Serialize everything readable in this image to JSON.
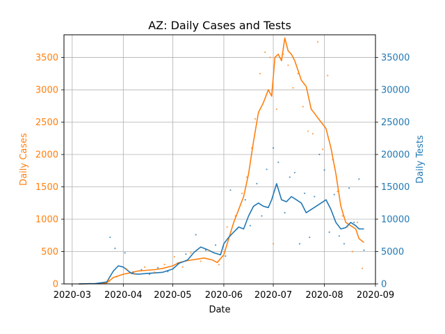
{
  "chart_data": {
    "type": "line",
    "title": "AZ: Daily Cases and Tests",
    "xlabel": "Date",
    "x_ticks": [
      "2020-03",
      "2020-04",
      "2020-05",
      "2020-06",
      "2020-07",
      "2020-08",
      "2020-09"
    ],
    "x_range": [
      "2020-02-25",
      "2020-09-01"
    ],
    "grid": true,
    "left_axis": {
      "label": "Daily Cases",
      "color": "#ff7f0e",
      "ylim": [
        0,
        3850
      ],
      "ticks": [
        0,
        500,
        1000,
        1500,
        2000,
        2500,
        3000,
        3500
      ]
    },
    "right_axis": {
      "label": "Daily Tests",
      "color": "#1f77b4",
      "ylim": [
        0,
        38500
      ],
      "ticks": [
        0,
        5000,
        10000,
        15000,
        20000,
        25000,
        30000,
        35000
      ]
    },
    "series": [
      {
        "axis": "left",
        "color": "#ff7f0e",
        "style": "line",
        "x": [
          "2020-03-05",
          "2020-03-15",
          "2020-03-22",
          "2020-03-26",
          "2020-04-01",
          "2020-04-05",
          "2020-04-10",
          "2020-04-15",
          "2020-04-20",
          "2020-04-25",
          "2020-05-01",
          "2020-05-05",
          "2020-05-10",
          "2020-05-15",
          "2020-05-20",
          "2020-05-25",
          "2020-05-28",
          "2020-06-01",
          "2020-06-04",
          "2020-06-07",
          "2020-06-10",
          "2020-06-13",
          "2020-06-16",
          "2020-06-19",
          "2020-06-22",
          "2020-06-25",
          "2020-06-28",
          "2020-06-30",
          "2020-07-02",
          "2020-07-04",
          "2020-07-06",
          "2020-07-08",
          "2020-07-10",
          "2020-07-12",
          "2020-07-14",
          "2020-07-16",
          "2020-07-18",
          "2020-07-21",
          "2020-07-24",
          "2020-07-27",
          "2020-07-30",
          "2020-08-02",
          "2020-08-05",
          "2020-08-08",
          "2020-08-11",
          "2020-08-14",
          "2020-08-17",
          "2020-08-20",
          "2020-08-22",
          "2020-08-25"
        ],
        "values": [
          0,
          5,
          15,
          100,
          150,
          170,
          200,
          210,
          220,
          240,
          280,
          330,
          360,
          380,
          400,
          370,
          330,
          450,
          700,
          950,
          1150,
          1350,
          1700,
          2200,
          2650,
          2800,
          3000,
          2900,
          3500,
          3550,
          3450,
          3800,
          3600,
          3550,
          3450,
          3300,
          3150,
          3050,
          2700,
          2600,
          2500,
          2400,
          2100,
          1700,
          1200,
          950,
          900,
          850,
          700,
          640
        ]
      },
      {
        "axis": "right",
        "color": "#1f77b4",
        "style": "line",
        "x": [
          "2020-03-05",
          "2020-03-15",
          "2020-03-22",
          "2020-03-26",
          "2020-03-29",
          "2020-04-01",
          "2020-04-03",
          "2020-04-06",
          "2020-04-10",
          "2020-04-15",
          "2020-04-20",
          "2020-04-25",
          "2020-05-01",
          "2020-05-05",
          "2020-05-10",
          "2020-05-14",
          "2020-05-18",
          "2020-05-22",
          "2020-05-26",
          "2020-05-30",
          "2020-06-01",
          "2020-06-04",
          "2020-06-07",
          "2020-06-10",
          "2020-06-13",
          "2020-06-16",
          "2020-06-19",
          "2020-06-22",
          "2020-06-25",
          "2020-06-28",
          "2020-06-30",
          "2020-07-03",
          "2020-07-06",
          "2020-07-09",
          "2020-07-12",
          "2020-07-15",
          "2020-07-18",
          "2020-07-21",
          "2020-07-24",
          "2020-07-27",
          "2020-07-30",
          "2020-08-02",
          "2020-08-05",
          "2020-08-08",
          "2020-08-11",
          "2020-08-14",
          "2020-08-17",
          "2020-08-20",
          "2020-08-22",
          "2020-08-25"
        ],
        "values": [
          0,
          50,
          300,
          2000,
          2800,
          2600,
          2200,
          1600,
          1500,
          1600,
          1700,
          1800,
          2300,
          3200,
          3700,
          4900,
          5700,
          5300,
          4800,
          4500,
          6200,
          7200,
          8000,
          8800,
          8500,
          10500,
          12000,
          12500,
          12000,
          11800,
          13000,
          15500,
          13000,
          12700,
          13500,
          13000,
          12500,
          11000,
          11500,
          12000,
          12500,
          13000,
          11500,
          9500,
          8500,
          8700,
          9500,
          9000,
          8500,
          8500
        ]
      },
      {
        "axis": "left",
        "color": "#ff7f0e",
        "style": "scatter",
        "x": [
          "2020-03-23",
          "2020-03-28",
          "2020-04-03",
          "2020-04-08",
          "2020-04-14",
          "2020-04-20",
          "2020-04-26",
          "2020-05-02",
          "2020-05-07",
          "2020-05-12",
          "2020-05-18",
          "2020-05-23",
          "2020-05-29",
          "2020-06-03",
          "2020-06-08",
          "2020-06-12",
          "2020-06-15",
          "2020-06-18",
          "2020-06-20",
          "2020-06-23",
          "2020-06-26",
          "2020-06-29",
          "2020-07-01",
          "2020-07-03",
          "2020-07-07",
          "2020-07-10",
          "2020-07-13",
          "2020-07-16",
          "2020-07-19",
          "2020-07-22",
          "2020-07-25",
          "2020-07-28",
          "2020-07-31",
          "2020-08-03",
          "2020-08-06",
          "2020-08-09",
          "2020-08-12",
          "2020-08-15",
          "2020-08-18",
          "2020-08-21",
          "2020-08-24"
        ],
        "values": [
          60,
          110,
          230,
          150,
          260,
          180,
          300,
          420,
          260,
          480,
          350,
          520,
          300,
          880,
          1050,
          1400,
          1650,
          2100,
          2550,
          3250,
          3580,
          3500,
          620,
          2700,
          3550,
          3380,
          3030,
          3250,
          2740,
          2360,
          2320,
          3740,
          2080,
          3220,
          1920,
          1430,
          1050,
          880,
          500,
          950,
          240
        ]
      },
      {
        "axis": "right",
        "color": "#1f77b4",
        "style": "scatter",
        "x": [
          "2020-03-24",
          "2020-03-27",
          "2020-04-02",
          "2020-04-07",
          "2020-04-12",
          "2020-04-17",
          "2020-04-22",
          "2020-04-28",
          "2020-05-04",
          "2020-05-09",
          "2020-05-15",
          "2020-05-21",
          "2020-05-27",
          "2020-06-02",
          "2020-06-05",
          "2020-06-09",
          "2020-06-14",
          "2020-06-17",
          "2020-06-21",
          "2020-06-24",
          "2020-06-27",
          "2020-07-01",
          "2020-07-04",
          "2020-07-08",
          "2020-07-11",
          "2020-07-14",
          "2020-07-17",
          "2020-07-20",
          "2020-07-23",
          "2020-07-26",
          "2020-07-29",
          "2020-08-01",
          "2020-08-04",
          "2020-08-07",
          "2020-08-10",
          "2020-08-13",
          "2020-08-16",
          "2020-08-19",
          "2020-08-22",
          "2020-08-25"
        ],
        "values": [
          7200,
          5500,
          4800,
          1800,
          2200,
          1500,
          2500,
          1900,
          3200,
          4600,
          7600,
          5200,
          6000,
          4300,
          14500,
          8500,
          13000,
          9000,
          15500,
          10500,
          17700,
          21000,
          18800,
          11000,
          16500,
          17200,
          6200,
          14000,
          7200,
          13500,
          20000,
          17600,
          8000,
          13800,
          7400,
          6200,
          14800,
          9500,
          16200,
          5200
        ]
      }
    ]
  }
}
